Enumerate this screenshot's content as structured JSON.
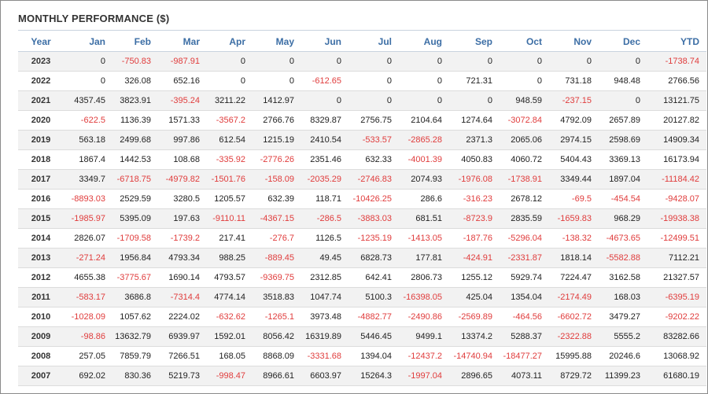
{
  "title": "MONTHLY PERFORMANCE ($)",
  "colors": {
    "header_text": "#3c6ea5",
    "negative": "#e03c3c",
    "row_alt": "#f2f2f2"
  },
  "columns": [
    "Year",
    "Jan",
    "Feb",
    "Mar",
    "Apr",
    "May",
    "Jun",
    "Jul",
    "Aug",
    "Sep",
    "Oct",
    "Nov",
    "Dec",
    "YTD"
  ],
  "rows": [
    [
      "2023",
      "0",
      "-750.83",
      "-987.91",
      "0",
      "0",
      "0",
      "0",
      "0",
      "0",
      "0",
      "0",
      "0",
      "-1738.74"
    ],
    [
      "2022",
      "0",
      "326.08",
      "652.16",
      "0",
      "0",
      "-612.65",
      "0",
      "0",
      "721.31",
      "0",
      "731.18",
      "948.48",
      "2766.56"
    ],
    [
      "2021",
      "4357.45",
      "3823.91",
      "-395.24",
      "3211.22",
      "1412.97",
      "0",
      "0",
      "0",
      "0",
      "948.59",
      "-237.15",
      "0",
      "13121.75"
    ],
    [
      "2020",
      "-622.5",
      "1136.39",
      "1571.33",
      "-3567.2",
      "2766.76",
      "8329.87",
      "2756.75",
      "2104.64",
      "1274.64",
      "-3072.84",
      "4792.09",
      "2657.89",
      "20127.82"
    ],
    [
      "2019",
      "563.18",
      "2499.68",
      "997.86",
      "612.54",
      "1215.19",
      "2410.54",
      "-533.57",
      "-2865.28",
      "2371.3",
      "2065.06",
      "2974.15",
      "2598.69",
      "14909.34"
    ],
    [
      "2018",
      "1867.4",
      "1442.53",
      "108.68",
      "-335.92",
      "-2776.26",
      "2351.46",
      "632.33",
      "-4001.39",
      "4050.83",
      "4060.72",
      "5404.43",
      "3369.13",
      "16173.94"
    ],
    [
      "2017",
      "3349.7",
      "-6718.75",
      "-4979.82",
      "-1501.76",
      "-158.09",
      "-2035.29",
      "-2746.83",
      "2074.93",
      "-1976.08",
      "-1738.91",
      "3349.44",
      "1897.04",
      "-11184.42"
    ],
    [
      "2016",
      "-8893.03",
      "2529.59",
      "3280.5",
      "1205.57",
      "632.39",
      "118.71",
      "-10426.25",
      "286.6",
      "-316.23",
      "2678.12",
      "-69.5",
      "-454.54",
      "-9428.07"
    ],
    [
      "2015",
      "-1985.97",
      "5395.09",
      "197.63",
      "-9110.11",
      "-4367.15",
      "-286.5",
      "-3883.03",
      "681.51",
      "-8723.9",
      "2835.59",
      "-1659.83",
      "968.29",
      "-19938.38"
    ],
    [
      "2014",
      "2826.07",
      "-1709.58",
      "-1739.2",
      "217.41",
      "-276.7",
      "1126.5",
      "-1235.19",
      "-1413.05",
      "-187.76",
      "-5296.04",
      "-138.32",
      "-4673.65",
      "-12499.51"
    ],
    [
      "2013",
      "-271.24",
      "1956.84",
      "4793.34",
      "988.25",
      "-889.45",
      "49.45",
      "6828.73",
      "177.81",
      "-424.91",
      "-2331.87",
      "1818.14",
      "-5582.88",
      "7112.21"
    ],
    [
      "2012",
      "4655.38",
      "-3775.67",
      "1690.14",
      "4793.57",
      "-9369.75",
      "2312.85",
      "642.41",
      "2806.73",
      "1255.12",
      "5929.74",
      "7224.47",
      "3162.58",
      "21327.57"
    ],
    [
      "2011",
      "-583.17",
      "3686.8",
      "-7314.4",
      "4774.14",
      "3518.83",
      "1047.74",
      "5100.3",
      "-16398.05",
      "425.04",
      "1354.04",
      "-2174.49",
      "168.03",
      "-6395.19"
    ],
    [
      "2010",
      "-1028.09",
      "1057.62",
      "2224.02",
      "-632.62",
      "-1265.1",
      "3973.48",
      "-4882.77",
      "-2490.86",
      "-2569.89",
      "-464.56",
      "-6602.72",
      "3479.27",
      "-9202.22"
    ],
    [
      "2009",
      "-98.86",
      "13632.79",
      "6939.97",
      "1592.01",
      "8056.42",
      "16319.89",
      "5446.45",
      "9499.1",
      "13374.2",
      "5288.37",
      "-2322.88",
      "5555.2",
      "83282.66"
    ],
    [
      "2008",
      "257.05",
      "7859.79",
      "7266.51",
      "168.05",
      "8868.09",
      "-3331.68",
      "1394.04",
      "-12437.2",
      "-14740.94",
      "-18477.27",
      "15995.88",
      "20246.6",
      "13068.92"
    ],
    [
      "2007",
      "692.02",
      "830.36",
      "5219.73",
      "-998.47",
      "8966.61",
      "6603.97",
      "15264.3",
      "-1997.04",
      "2896.65",
      "4073.11",
      "8729.72",
      "11399.23",
      "61680.19"
    ]
  ]
}
